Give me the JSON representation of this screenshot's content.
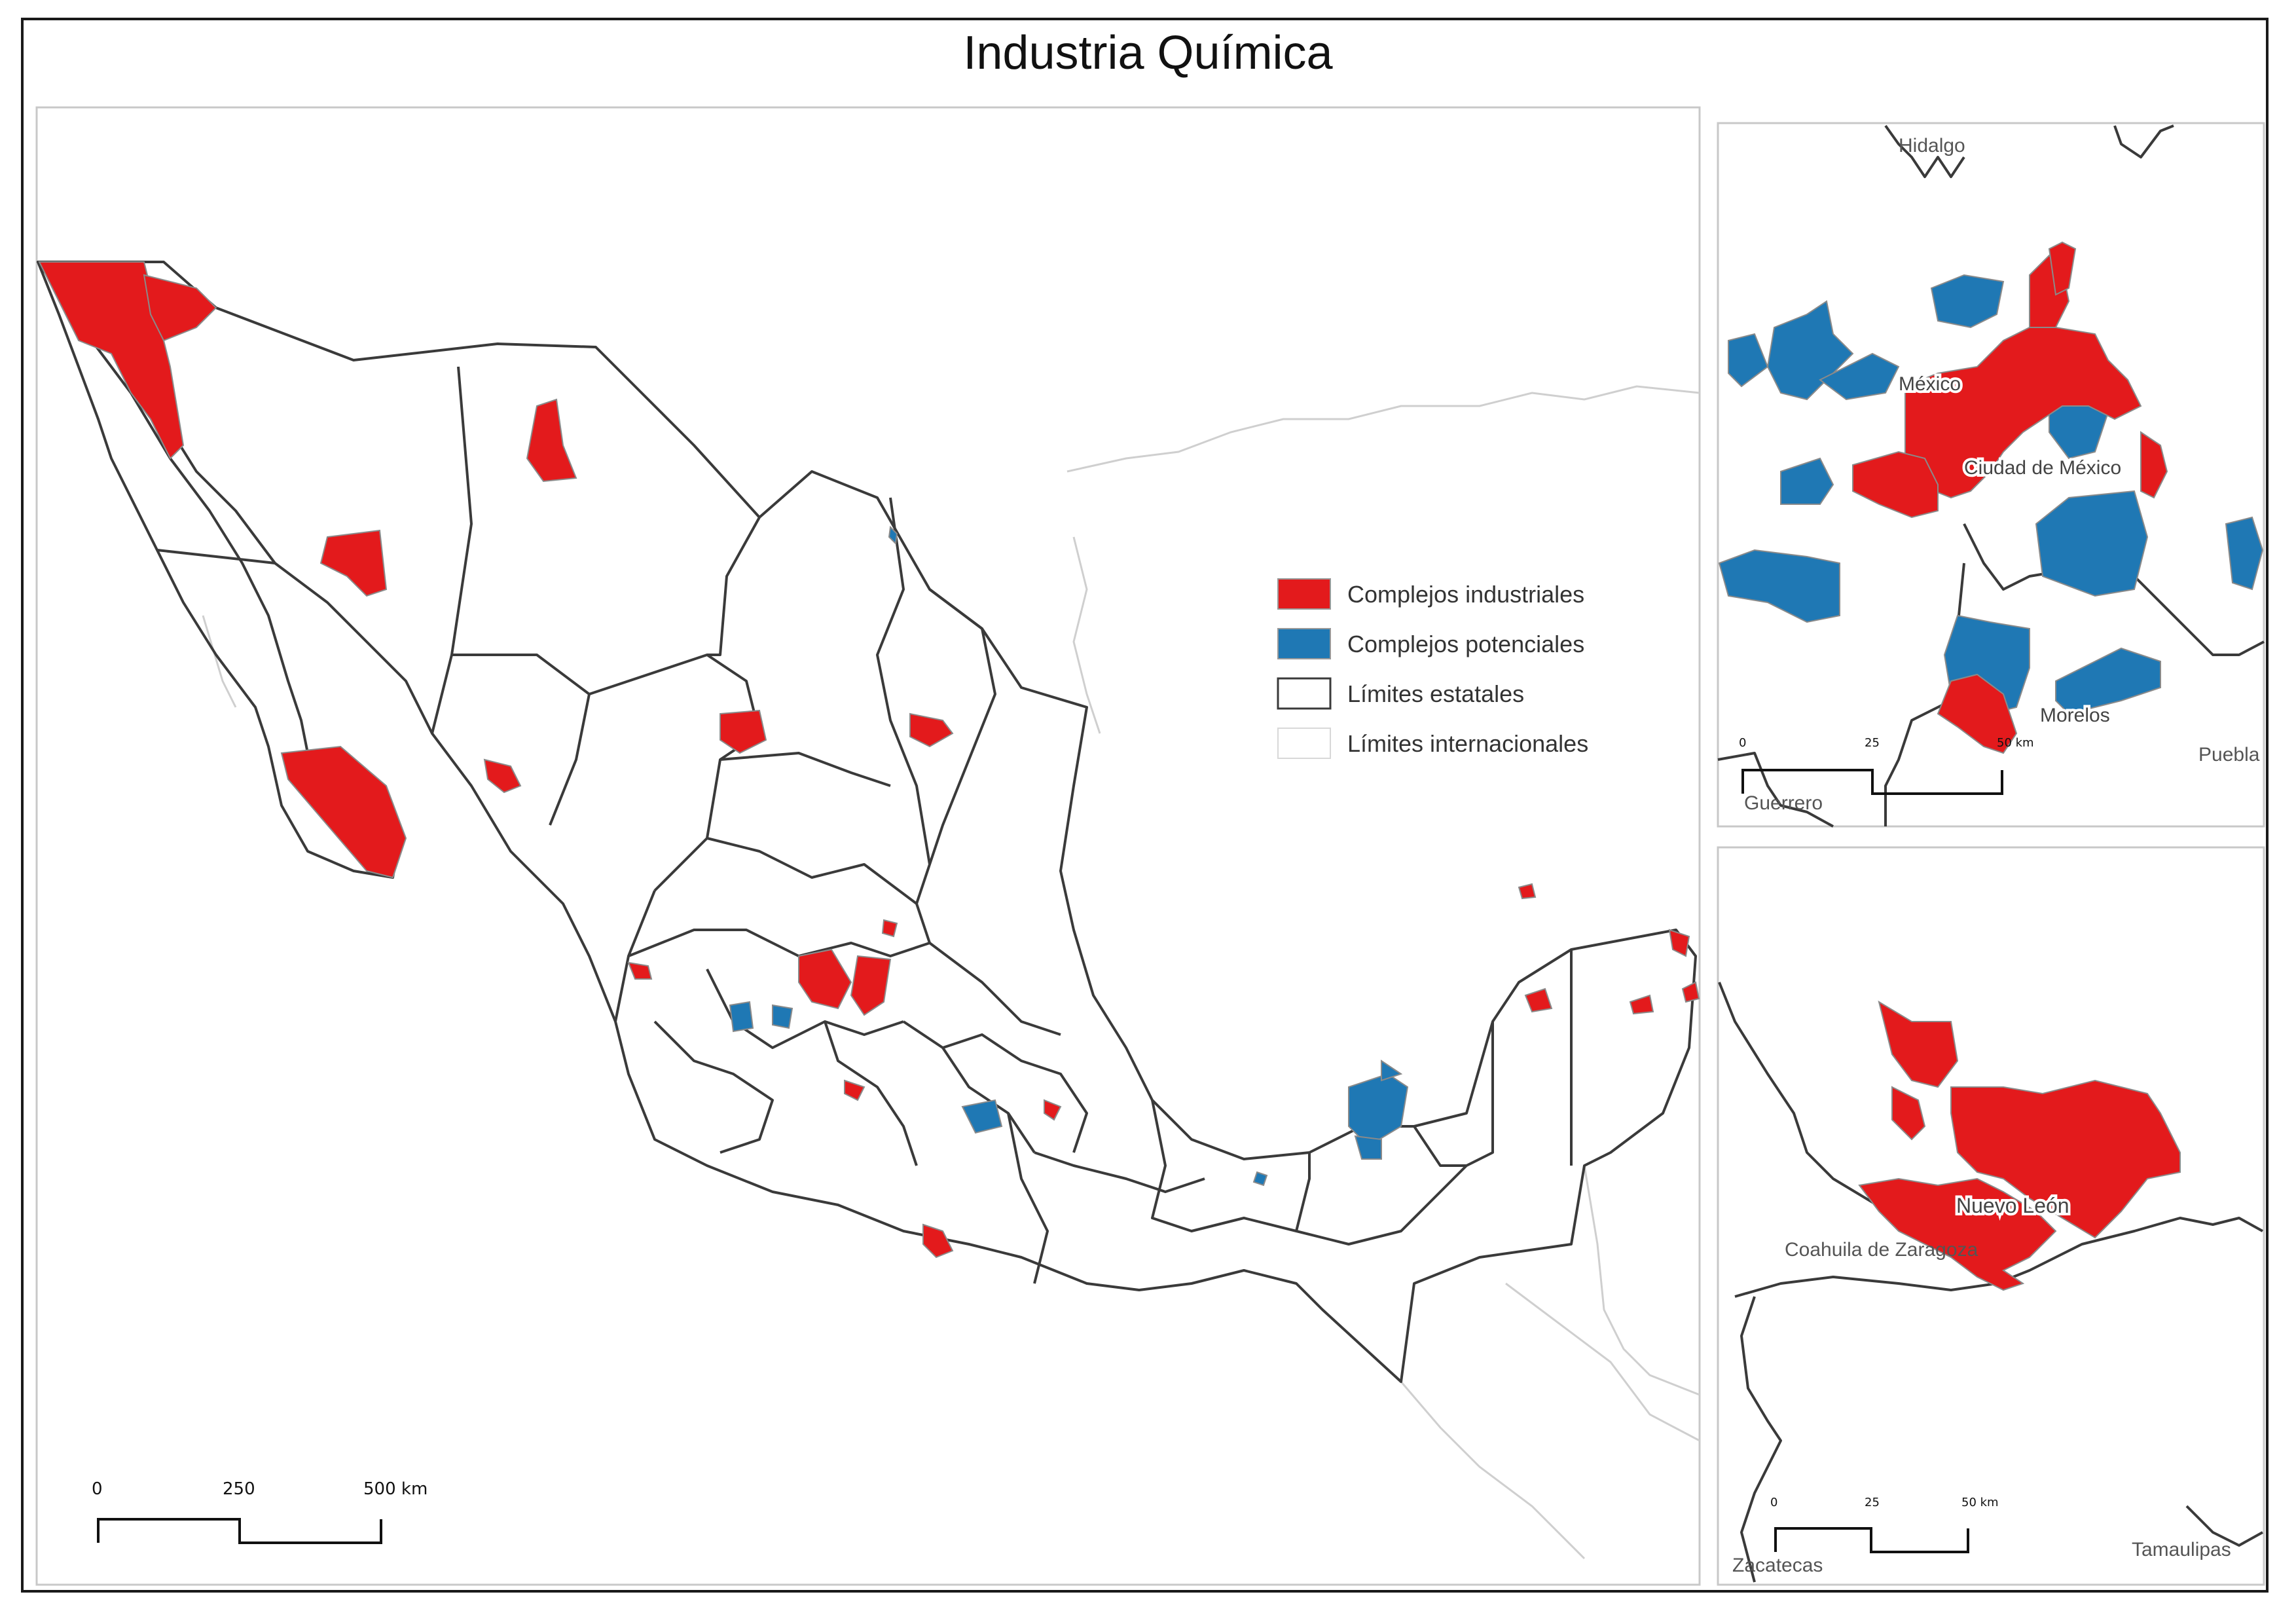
{
  "title": "Industria Química",
  "colors": {
    "industrial": "#e31a1c",
    "potential": "#1f78b4",
    "state_border": "#3a3a3a",
    "intl_border": "#cfcfcf"
  },
  "legend": {
    "items": [
      {
        "label": "Complejos industriales",
        "symbol": "red-fill"
      },
      {
        "label": "Complejos potenciales",
        "symbol": "blue-fill"
      },
      {
        "label": "Límites estatales",
        "symbol": "dark-outline"
      },
      {
        "label": "Límites internacionales",
        "symbol": "light-outline"
      }
    ]
  },
  "main_scale": {
    "ticks": [
      "0",
      "250",
      "500 km"
    ]
  },
  "inset_cdmx": {
    "labels": {
      "hidalgo": "Hidalgo",
      "mexico": "México",
      "cdmx": "Ciudad de México",
      "morelos": "Morelos",
      "puebla": "Puebla",
      "guerrero": "Guerrero"
    },
    "scale": {
      "ticks": [
        "0",
        "25",
        "50 km"
      ]
    }
  },
  "inset_nl": {
    "labels": {
      "nuevo_leon": "Nuevo León",
      "coahuila": "Coahuila de Zaragoza",
      "zacatecas": "Zacatecas",
      "tamaulipas": "Tamaulipas"
    },
    "scale": {
      "ticks": [
        "0",
        "25",
        "50 km"
      ]
    }
  }
}
